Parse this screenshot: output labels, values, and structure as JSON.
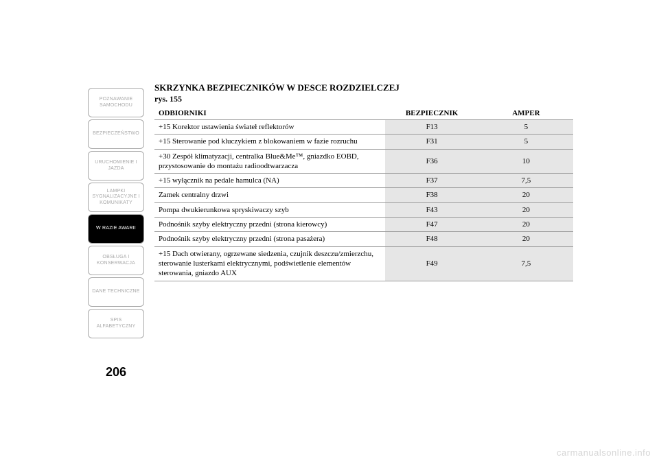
{
  "sidebar": {
    "tabs": [
      {
        "label": "POZNAWANIE SAMOCHODU",
        "active": false
      },
      {
        "label": "BEZPIECZEŃSTWO",
        "active": false
      },
      {
        "label": "URUCHOMIENIE I JAZDA",
        "active": false
      },
      {
        "label": "LAMPKI SYGNALIZACYJNE I KOMUNIKATY",
        "active": false
      },
      {
        "label": "W RAZIE AWARII",
        "active": true
      },
      {
        "label": "OBSŁUGA I KONSERWACJA",
        "active": false
      },
      {
        "label": "DANE TECHNICZNE",
        "active": false
      },
      {
        "label": "SPIS ALFABETYCZNY",
        "active": false
      }
    ]
  },
  "page_number": "206",
  "title": "SKRZYNKA BEZPIECZNIKÓW W DESCE ROZDZIELCZEJ",
  "subtitle": "rys. 155",
  "table": {
    "columns": [
      "ODBIORNIKI",
      "BEZPIECZNIK",
      "AMPER"
    ],
    "header_bg": "#ffffff",
    "shade_bg": "#e6e6e6",
    "border_color": "#9a9a9a",
    "font_size_pt": 11,
    "rows": [
      {
        "desc": "+15 Korektor ustawienia świateł reflektorów",
        "fuse": "F13",
        "amp": "5"
      },
      {
        "desc": "+15 Sterowanie pod kluczykiem z blokowaniem w fazie rozruchu",
        "fuse": "F31",
        "amp": "5"
      },
      {
        "desc": "+30 Zespół klimatyzacji, centralka Blue&Me™, gniazdko EOBD, przystosowanie do montażu radioodtwarzacza",
        "fuse": "F36",
        "amp": "10"
      },
      {
        "desc": "+15 wyłącznik na pedale hamulca (NA)",
        "fuse": "F37",
        "amp": "7,5"
      },
      {
        "desc": "Zamek centralny drzwi",
        "fuse": "F38",
        "amp": "20"
      },
      {
        "desc": "Pompa dwukierunkowa spryskiwaczy szyb",
        "fuse": "F43",
        "amp": "20"
      },
      {
        "desc": "Podnośnik szyby elektryczny przedni (strona kierowcy)",
        "fuse": "F47",
        "amp": "20"
      },
      {
        "desc": "Podnośnik szyby elektryczny przedni (strona pasażera)",
        "fuse": "F48",
        "amp": "20"
      },
      {
        "desc": "+15 Dach otwierany, ogrzewane siedzenia, czujnik deszczu/zmierzchu, sterowanie lusterkami elektrycznymi, podświetlenie elementów sterowania, gniazdo AUX",
        "fuse": "F49",
        "amp": "7,5"
      }
    ]
  },
  "watermark": "carmanualsonline.info",
  "colors": {
    "tab_border": "#a9a9a9",
    "tab_inactive_text": "#a9a9a9",
    "tab_active_bg": "#000000",
    "tab_active_text": "#ffffff",
    "watermark": "#d6d6d6",
    "page_bg": "#ffffff",
    "text": "#000000"
  }
}
